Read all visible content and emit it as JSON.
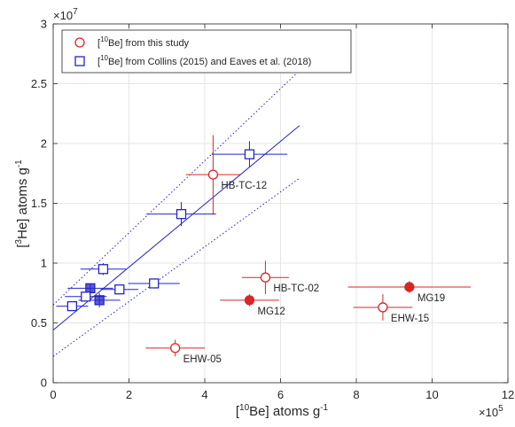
{
  "chart_data": {
    "type": "scatter",
    "xlabel": {
      "pre": "[",
      "sup": "10",
      "post": "Be] atoms g",
      "exp": "-1"
    },
    "ylabel": {
      "pre": "[",
      "sup": "3",
      "post": "He] atoms g",
      "exp": "-1"
    },
    "x_multiplier": {
      "base": "×10",
      "exp": "5"
    },
    "y_multiplier": {
      "base": "×10",
      "exp": "7"
    },
    "xlim": [
      0,
      12
    ],
    "ylim": [
      0,
      3
    ],
    "xticks": [
      0,
      2,
      4,
      6,
      8,
      10,
      12
    ],
    "yticks": [
      0,
      0.5,
      1,
      1.5,
      2,
      2.5,
      3
    ],
    "xtick_labels": [
      "0",
      "2",
      "4",
      "6",
      "8",
      "10",
      "12"
    ],
    "ytick_labels": [
      "0",
      "0.5",
      "1",
      "1.5",
      "2",
      "2.5",
      "3"
    ],
    "grid": true,
    "legend_position": "top-left",
    "colors": {
      "this_study": "#d62728",
      "collins_eaves": "#2424c8",
      "axes": "#262626",
      "grid": "#e6e6e6"
    },
    "series": [
      {
        "legend": {
          "pre": "[",
          "sup": "10",
          "post": "Be] from this study"
        },
        "marker": "circle",
        "points": [
          {
            "x": 4.22,
            "y": 1.74,
            "xerr": 0.72,
            "yerr": 0.33,
            "filled": false,
            "label": "HB-TC-12"
          },
          {
            "x": 5.6,
            "y": 0.88,
            "xerr": 0.62,
            "yerr": 0.14,
            "filled": false,
            "label": "HB-TC-02"
          },
          {
            "x": 5.18,
            "y": 0.69,
            "xerr": 0.78,
            "yerr": 0.05,
            "filled": true,
            "label": "MG12"
          },
          {
            "x": 9.4,
            "y": 0.8,
            "xerr": 1.62,
            "yerr": 0.05,
            "filled": true,
            "label": "MG19"
          },
          {
            "x": 8.7,
            "y": 0.63,
            "xerr": 0.78,
            "yerr": 0.11,
            "filled": false,
            "label": "EHW-15"
          },
          {
            "x": 3.22,
            "y": 0.29,
            "xerr": 0.78,
            "yerr": 0.07,
            "filled": false,
            "label": "EHW-05"
          }
        ]
      },
      {
        "legend": {
          "pre": "[",
          "sup": "10",
          "post": "Be] from Collins (2015) and Eaves et al. (2018)"
        },
        "marker": "square",
        "points": [
          {
            "x": 5.18,
            "y": 1.91,
            "xerr": 1.0,
            "yerr": 0.11,
            "filled": false
          },
          {
            "x": 3.38,
            "y": 1.41,
            "xerr": 0.92,
            "yerr": 0.1,
            "filled": false
          },
          {
            "x": 1.32,
            "y": 0.95,
            "xerr": 0.6,
            "yerr": 0.05,
            "filled": false
          },
          {
            "x": 0.98,
            "y": 0.79,
            "xerr": 0.6,
            "yerr": 0.04,
            "filled": true
          },
          {
            "x": 0.86,
            "y": 0.72,
            "xerr": 0.55,
            "yerr": 0.03,
            "filled": false
          },
          {
            "x": 1.22,
            "y": 0.69,
            "xerr": 0.55,
            "yerr": 0.06,
            "filled": true
          },
          {
            "x": 1.75,
            "y": 0.78,
            "xerr": 0.5,
            "yerr": 0.03,
            "filled": false
          },
          {
            "x": 2.66,
            "y": 0.83,
            "xerr": 0.68,
            "yerr": 0.03,
            "filled": false
          },
          {
            "x": 0.5,
            "y": 0.64,
            "xerr": 0.42,
            "yerr": 0.03,
            "filled": false
          }
        ]
      }
    ],
    "fit_line": {
      "x": [
        0,
        6.5
      ],
      "y": [
        0.44,
        2.15
      ]
    },
    "confidence_bounds": [
      {
        "x": [
          0,
          6.5
        ],
        "y": [
          0.65,
          2.61
        ]
      },
      {
        "x": [
          0,
          6.5
        ],
        "y": [
          0.22,
          1.71
        ]
      }
    ]
  }
}
